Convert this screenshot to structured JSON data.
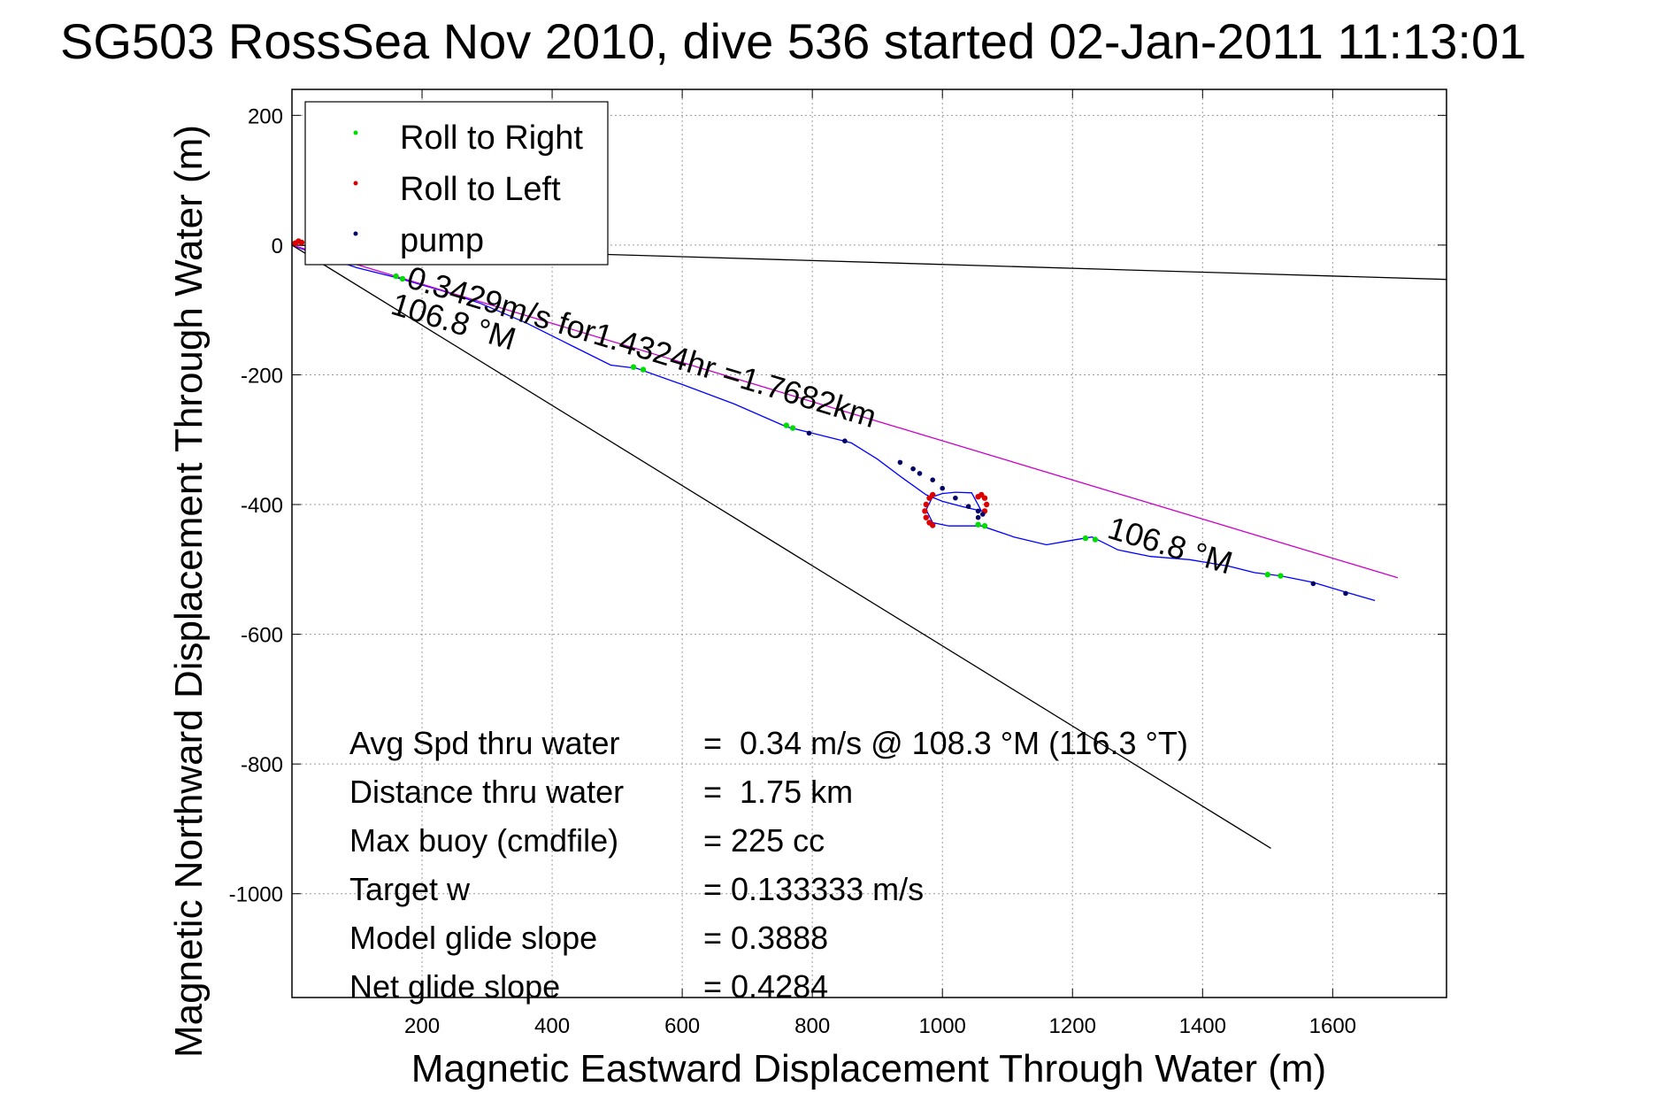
{
  "chart_data": {
    "type": "scatter",
    "title": "SG503 RossSea Nov 2010, dive 536 started 02-Jan-2011 11:13:01",
    "xlabel": "Magnetic Eastward Displacement Through Water (m)",
    "ylabel": "Magnetic Northward Displacement Through Water (m)",
    "xlim": [
      0,
      1775
    ],
    "ylim": [
      -1160,
      240
    ],
    "xticks": [
      200,
      400,
      600,
      800,
      1000,
      1200,
      1400,
      1600
    ],
    "yticks": [
      200,
      0,
      -200,
      -400,
      -600,
      -800,
      -1000
    ],
    "grid": true,
    "legend_position": "top-left",
    "legend": [
      {
        "label": "Roll to Right",
        "color": "#00dd00"
      },
      {
        "label": "Roll to Left",
        "color": "#dd0000"
      },
      {
        "label": "pump",
        "color": "#000066"
      }
    ],
    "annotations": {
      "track_label": "0.3429m/s for1.4324hr =1.7682km",
      "heading_label_1": "106.8 °M",
      "heading_label_2": "106.8 °M"
    },
    "stats": [
      {
        "label": "Avg Spd thru water",
        "value": "=  0.34 m/s @ 108.3 °M (116.3 °T)"
      },
      {
        "label": "Distance thru water",
        "value": "=  1.75 km"
      },
      {
        "label": "Max buoy (cmdfile)",
        "value": "= 225 cc"
      },
      {
        "label": "Target w",
        "value": "= 0.133333 m/s"
      },
      {
        "label": "Model glide slope",
        "value": "= 0.3888"
      },
      {
        "label": "Net glide slope",
        "value": "= 0.4284"
      }
    ],
    "series": [
      {
        "kind": "track",
        "color": "#0000ff",
        "x": [
          0,
          40,
          100,
          160,
          230,
          290,
          360,
          430,
          490,
          530,
          600,
          680,
          760,
          800,
          860,
          900,
          940,
          975,
          1000,
          1030,
          1060,
          1045,
          1020,
          1000,
          985,
          975,
          985,
          1010,
          1060,
          1110,
          1160,
          1200,
          1230,
          1270,
          1320,
          1380,
          1440,
          1480,
          1520,
          1570,
          1620,
          1665
        ],
        "y": [
          0,
          -15,
          -35,
          -50,
          -70,
          -90,
          -120,
          -155,
          -185,
          -190,
          -215,
          -245,
          -280,
          -290,
          -305,
          -330,
          -360,
          -385,
          -395,
          -403,
          -410,
          -382,
          -381,
          -383,
          -388,
          -408,
          -428,
          -433,
          -433,
          -450,
          -462,
          -455,
          -450,
          -470,
          -480,
          -485,
          -495,
          -505,
          -510,
          -520,
          -535,
          -548
        ]
      },
      {
        "kind": "heading_reference",
        "color": "#cc00cc",
        "x": [
          0,
          1700
        ],
        "y": [
          0,
          -513
        ]
      },
      {
        "kind": "heading_line",
        "color": "#000000",
        "x": [
          0,
          1505
        ],
        "y": [
          0,
          -930
        ]
      },
      {
        "kind": "heading_line",
        "color": "#000000",
        "x": [
          0,
          1775
        ],
        "y": [
          0,
          -53
        ]
      },
      {
        "kind": "roll_right",
        "color": "#00dd00",
        "x": [
          160,
          170,
          525,
          540,
          760,
          770,
          1055,
          1065,
          1220,
          1235,
          1500,
          1520
        ],
        "y": [
          -48,
          -52,
          -188,
          -192,
          -278,
          -282,
          -431,
          -433,
          -452,
          -454,
          -508,
          -510
        ]
      },
      {
        "kind": "roll_left",
        "color": "#dd0000",
        "x": [
          5,
          10,
          15,
          985,
          980,
          975,
          973,
          975,
          980,
          985,
          1055,
          1060,
          1065,
          1068,
          1065
        ],
        "y": [
          3,
          6,
          4,
          -385,
          -390,
          -400,
          -410,
          -420,
          -428,
          -432,
          -388,
          -385,
          -390,
          -400,
          -410
        ]
      },
      {
        "kind": "pump",
        "color": "#000066",
        "x": [
          795,
          850,
          935,
          955,
          965,
          985,
          1000,
          1020,
          1040,
          1055,
          1062,
          1055,
          1570,
          1620
        ],
        "y": [
          -290,
          -302,
          -335,
          -345,
          -352,
          -362,
          -375,
          -390,
          -403,
          -410,
          -415,
          -420,
          -522,
          -537
        ]
      }
    ]
  }
}
